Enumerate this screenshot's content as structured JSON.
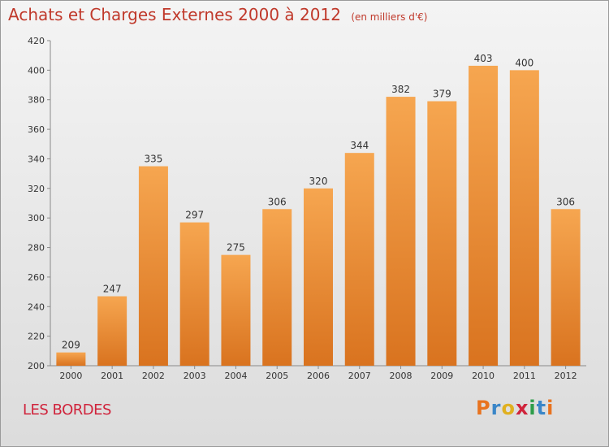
{
  "header": {
    "title": "Achats et Charges Externes 2000 à 2012",
    "subtitle": "(en milliers d'€)"
  },
  "footer": {
    "commune": "LES BORDES",
    "logo_text": "Proxiti"
  },
  "colors": {
    "bar_top": "#f6a650",
    "bar_bottom": "#d9731f",
    "title": "#c0392b",
    "commune": "#d0243c"
  },
  "chart_data": {
    "type": "bar",
    "title": "Achats et Charges Externes 2000 à 2012",
    "subtitle": "(en milliers d'€)",
    "categories": [
      "2000",
      "2001",
      "2002",
      "2003",
      "2004",
      "2005",
      "2006",
      "2007",
      "2008",
      "2009",
      "2010",
      "2011",
      "2012"
    ],
    "values": [
      209,
      247,
      335,
      297,
      275,
      306,
      320,
      344,
      382,
      379,
      403,
      400,
      306
    ],
    "xlabel": "",
    "ylabel": "",
    "ylim": [
      200,
      420
    ],
    "yticks": [
      200,
      220,
      240,
      260,
      280,
      300,
      320,
      340,
      360,
      380,
      400,
      420
    ],
    "grid": false,
    "legend": "none"
  }
}
